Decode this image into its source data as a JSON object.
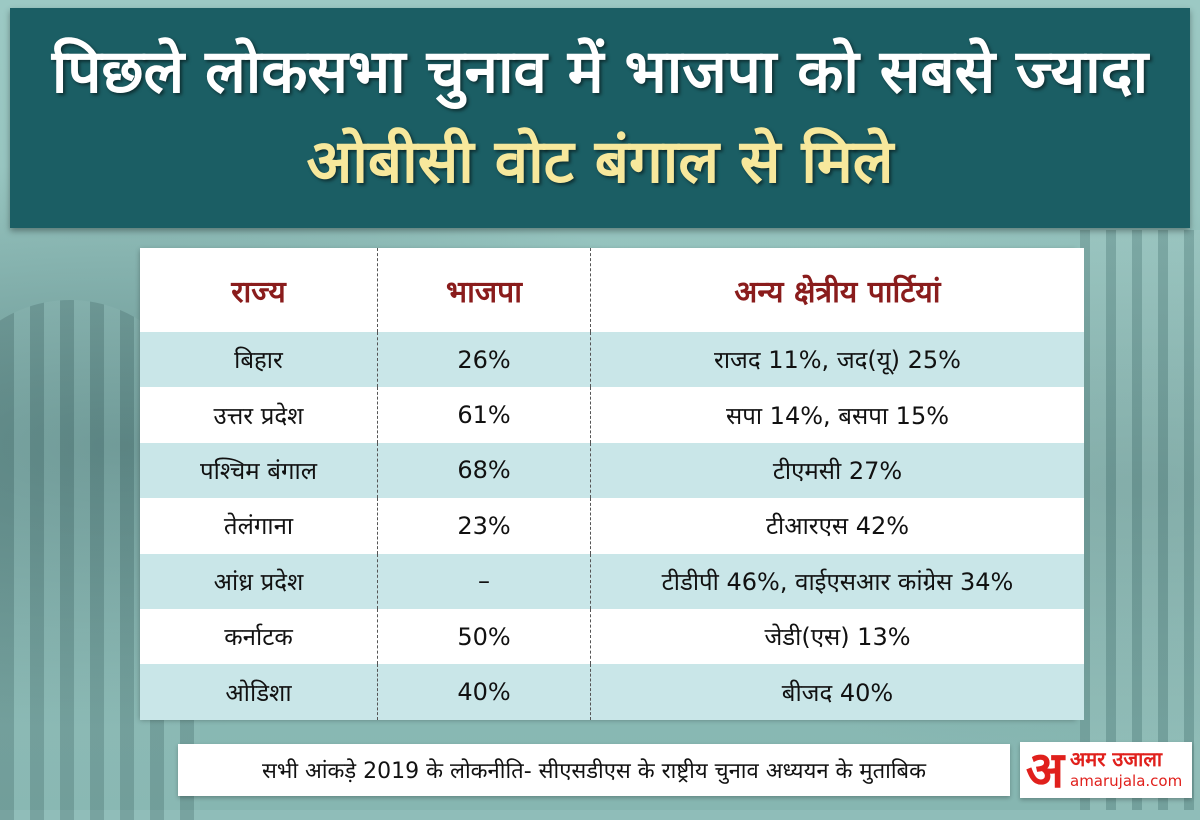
{
  "header": {
    "title_line1": "पिछले लोकसभा चुनाव में भाजपा को सबसे ज्यादा",
    "title_line2": "ओबीसी वोट बंगाल से मिले"
  },
  "table": {
    "columns": [
      "राज्य",
      "भाजपा",
      "अन्य क्षेत्रीय पार्टियां"
    ],
    "rows": [
      {
        "state": "बिहार",
        "bjp": "26%",
        "others": "राजद 11%, जद(यू) 25%"
      },
      {
        "state": "उत्तर प्रदेश",
        "bjp": "61%",
        "others": "सपा 14%,  बसपा 15%"
      },
      {
        "state": "पश्चिम बंगाल",
        "bjp": "68%",
        "others": "टीएमसी 27%"
      },
      {
        "state": "तेलंगाना",
        "bjp": "23%",
        "others": "टीआरएस 42%"
      },
      {
        "state": "आंध्र प्रदेश",
        "bjp": "–",
        "others": "टीडीपी 46%, वाईएसआर कांग्रेस  34%"
      },
      {
        "state": "कर्नाटक",
        "bjp": "50%",
        "others": "जेडी(एस) 13%"
      },
      {
        "state": "ओडिशा",
        "bjp": "40%",
        "others": "बीजद  40%"
      }
    ]
  },
  "footer": {
    "source_note": "सभी आंकड़े 2019 के लोकनीति- सीएसडीएस के राष्ट्रीय चुनाव अध्ययन के मुताबिक"
  },
  "logo": {
    "mark": "अ",
    "name": "अमर उजाला",
    "url": "amarujala.com"
  },
  "colors": {
    "header_bg": "#1b5e64",
    "title_line1": "#ffffff",
    "title_line2": "#f7e89c",
    "column_header": "#8a1c1c",
    "row_alt": "#c9e6e8",
    "logo_red": "#e0201c"
  }
}
